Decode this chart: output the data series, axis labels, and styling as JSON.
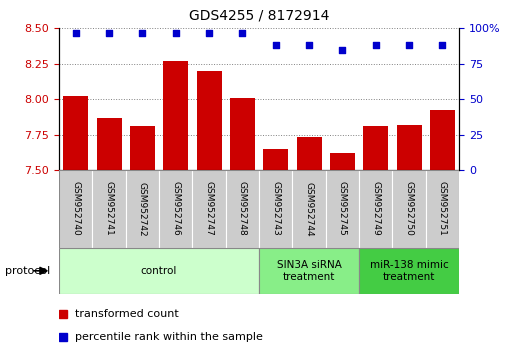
{
  "title": "GDS4255 / 8172914",
  "samples": [
    "GSM952740",
    "GSM952741",
    "GSM952742",
    "GSM952746",
    "GSM952747",
    "GSM952748",
    "GSM952743",
    "GSM952744",
    "GSM952745",
    "GSM952749",
    "GSM952750",
    "GSM952751"
  ],
  "bar_values": [
    8.02,
    7.87,
    7.81,
    8.27,
    8.2,
    8.01,
    7.65,
    7.73,
    7.62,
    7.81,
    7.82,
    7.92
  ],
  "dot_values": [
    97,
    97,
    97,
    97,
    97,
    97,
    88,
    88,
    85,
    88,
    88,
    88
  ],
  "bar_color": "#cc0000",
  "dot_color": "#0000cc",
  "ylim_left": [
    7.5,
    8.5
  ],
  "ylim_right": [
    0,
    100
  ],
  "yticks_left": [
    7.5,
    7.75,
    8.0,
    8.25,
    8.5
  ],
  "yticks_right": [
    0,
    25,
    50,
    75,
    100
  ],
  "groups": [
    {
      "label": "control",
      "start": 0,
      "end": 6,
      "color": "#ccffcc"
    },
    {
      "label": "SIN3A siRNA\ntreatment",
      "start": 6,
      "end": 9,
      "color": "#88ee88"
    },
    {
      "label": "miR-138 mimic\ntreatment",
      "start": 9,
      "end": 12,
      "color": "#44cc44"
    }
  ],
  "grid_style": "dotted",
  "bar_width": 0.75,
  "xticklabel_fontsize": 6.5,
  "yticklabel_left_color": "#cc0000",
  "yticklabel_right_color": "#0000cc",
  "sample_box_color": "#cccccc",
  "protocol_label": "protocol",
  "legend_items": [
    {
      "label": "transformed count",
      "color": "#cc0000"
    },
    {
      "label": "percentile rank within the sample",
      "color": "#0000cc"
    }
  ]
}
